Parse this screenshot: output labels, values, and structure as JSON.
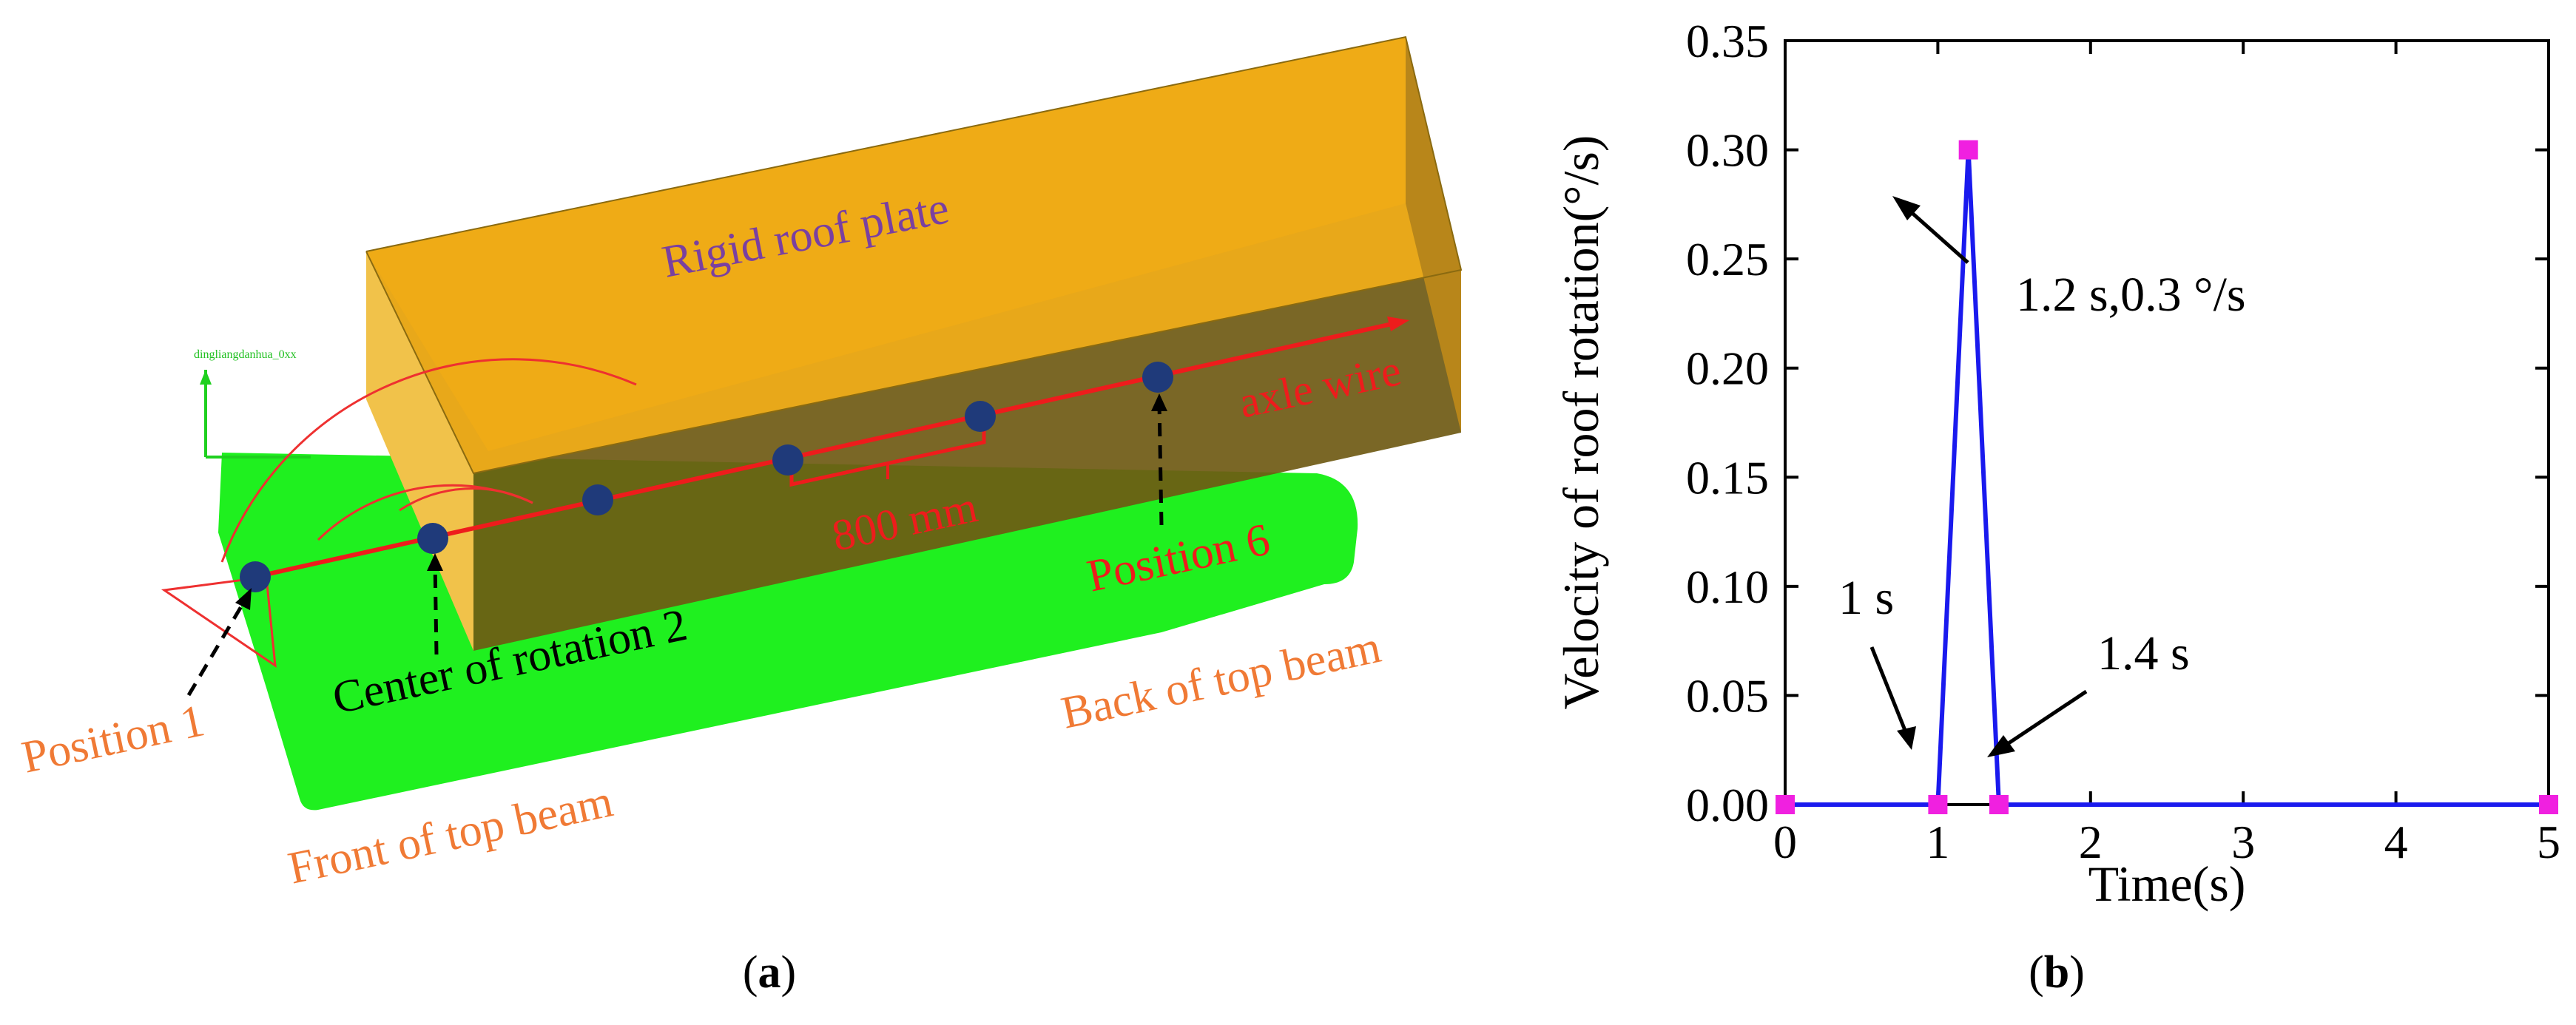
{
  "panel_a": {
    "caption": "(a)",
    "caption_letter": "a",
    "labels": {
      "roof_plate": "Rigid roof plate",
      "axle_wire": "axle wire",
      "distance": "800 mm",
      "position_6": "Position 6",
      "center_rotation": "Center of rotation 2",
      "position_1": "Position 1",
      "back_top_beam": "Back of top beam",
      "front_top_beam": "Front of top beam",
      "software_tag": "dingliangdanhua_0xx"
    },
    "colors": {
      "roof_plate": "#f2b311",
      "beam": "#1ff01f",
      "axle": "#ee1c1c",
      "marker": "#1f3a7a",
      "label_orange": "#f07a35",
      "label_purple": "#7a40a0"
    }
  },
  "panel_b": {
    "caption": "(b)",
    "caption_letter": "b",
    "annotations": {
      "peak": "1.2 s,0.3  °/s",
      "start": "1 s",
      "end": "1.4 s"
    }
  },
  "chart_data": {
    "type": "line",
    "title": "",
    "xlabel": "Time(s)",
    "ylabel": "Velocity of roof rotation(°/s)",
    "xlim": [
      0,
      5
    ],
    "ylim": [
      0,
      0.35
    ],
    "xticks": [
      "0",
      "1",
      "2",
      "3",
      "4",
      "5"
    ],
    "yticks": [
      "0.00",
      "0.05",
      "0.10",
      "0.15",
      "0.20",
      "0.25",
      "0.30",
      "0.35"
    ],
    "xtick_values": [
      0,
      1,
      2,
      3,
      4,
      5
    ],
    "ytick_values": [
      0,
      0.05,
      0.1,
      0.15,
      0.2,
      0.25,
      0.3,
      0.35
    ],
    "series": [
      {
        "name": "roof rotation velocity",
        "color": "#1a1aee",
        "marker_color": "#f020e0",
        "x": [
          0,
          1,
          1.2,
          1.4,
          5
        ],
        "y": [
          0,
          0,
          0.3,
          0,
          0
        ]
      }
    ]
  }
}
